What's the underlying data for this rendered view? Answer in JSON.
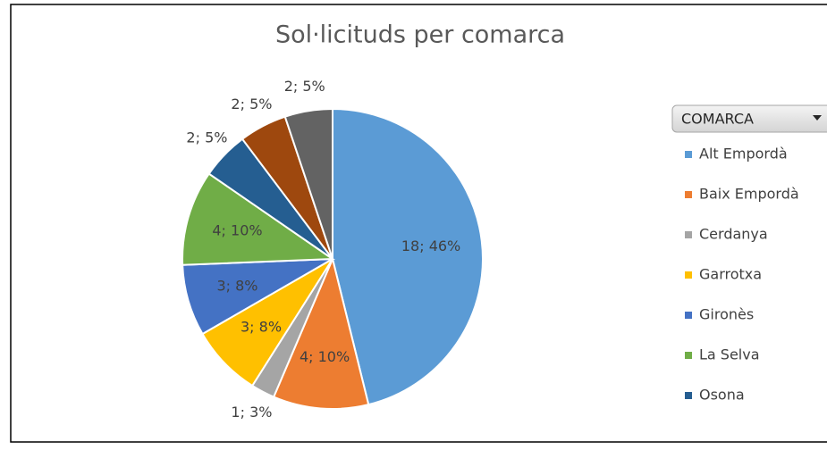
{
  "chart_data": {
    "type": "pie",
    "title": "Sol·licituds per comarca",
    "legend_title": "COMARCA",
    "categories": [
      "Alt Empordà",
      "Baix Empordà",
      "Cerdanya",
      "Garrotxa",
      "Gironès",
      "La Selva",
      "Osona",
      null,
      null
    ],
    "values": [
      18,
      4,
      1,
      3,
      3,
      4,
      2,
      2,
      2
    ],
    "value_labels": [
      "18; 46%",
      "4; 10%",
      "1; 3%",
      "3; 8%",
      "3; 8%",
      "4; 10%",
      "2; 5%",
      "2; 5%",
      "2; 5%"
    ],
    "colors": [
      "#5b9bd5",
      "#ed7d31",
      "#a5a5a5",
      "#ffc000",
      "#4472c4",
      "#70ad47",
      "#255e91",
      "#9e480e",
      "#636363"
    ],
    "legend": "right"
  }
}
